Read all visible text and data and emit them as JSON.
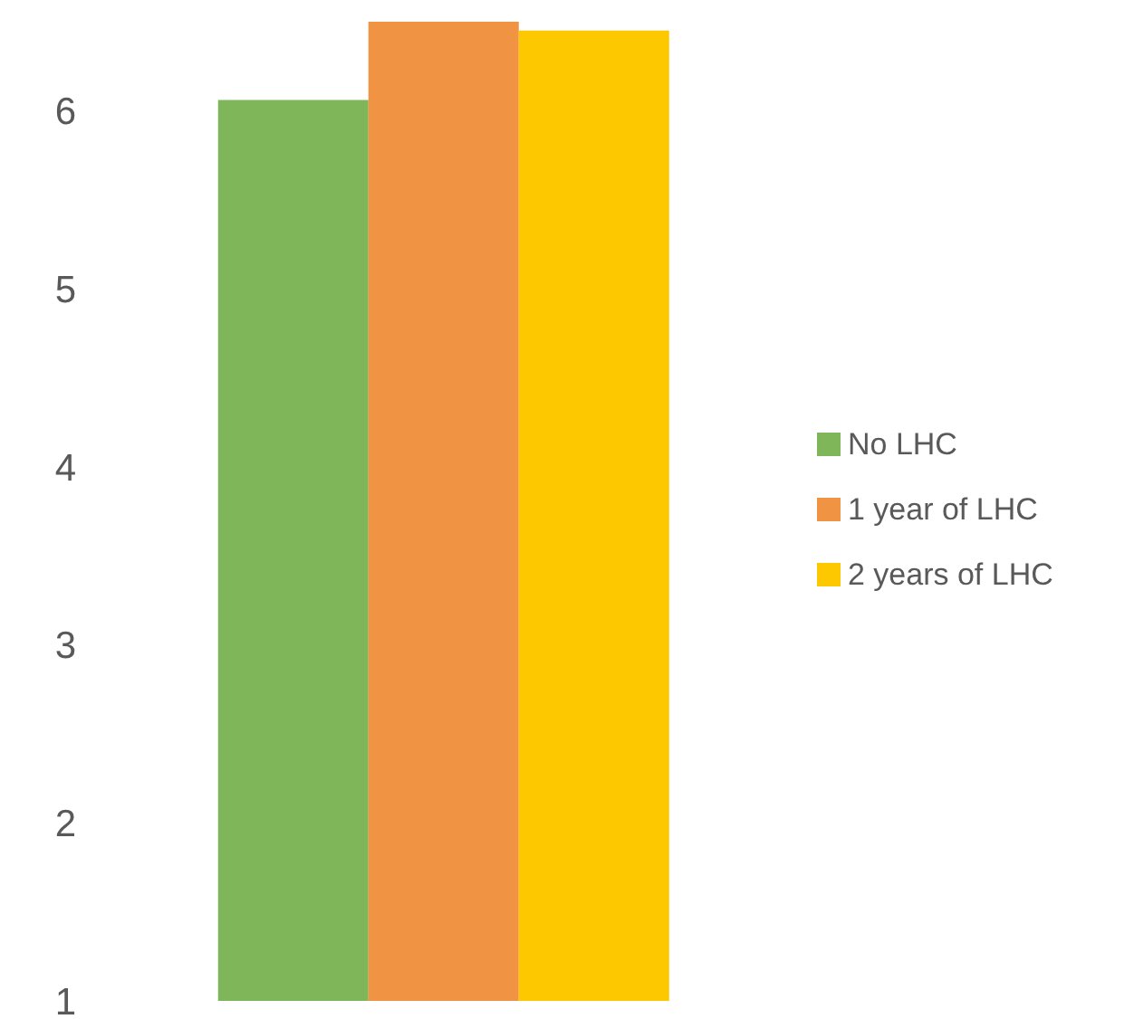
{
  "chart_data": {
    "type": "bar",
    "categories": [
      null
    ],
    "series": [
      {
        "name": "No LHC",
        "color": "#7fb659",
        "values": [
          6.06
        ]
      },
      {
        "name": "1 year of LHC",
        "color": "#f09343",
        "values": [
          6.5
        ]
      },
      {
        "name": "2 years of LHC",
        "color": "#fec800",
        "values": [
          6.45
        ]
      }
    ],
    "ylim": [
      1,
      6.5
    ],
    "yticks": [
      1,
      2,
      3,
      4,
      5,
      6
    ],
    "grid": false,
    "legend": "right",
    "tick_labels": "y"
  }
}
